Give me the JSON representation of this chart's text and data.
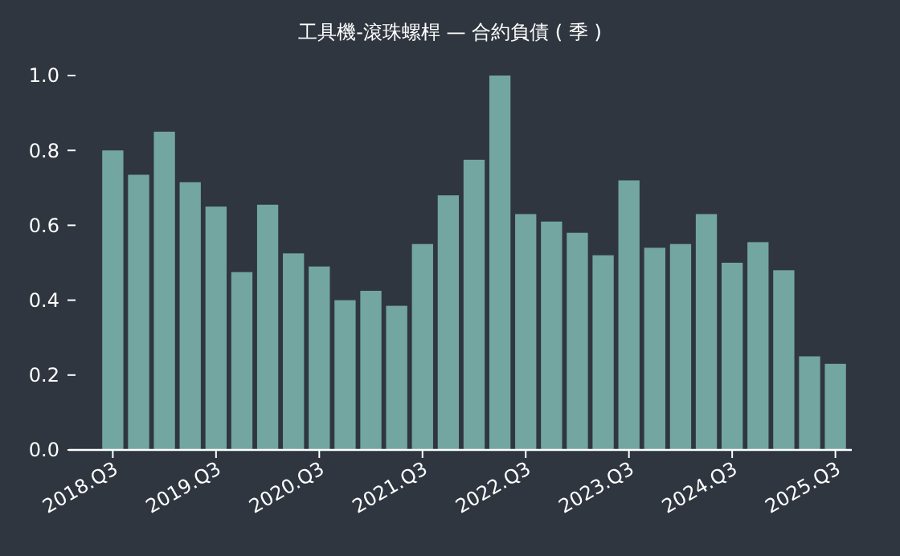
{
  "chart_data": {
    "type": "bar",
    "title": "工具機-滾珠螺桿 — 合約負債 ( 季 )",
    "categories": [
      "2018.Q3",
      null,
      null,
      null,
      "2019.Q3",
      null,
      null,
      null,
      "2020.Q3",
      null,
      null,
      null,
      "2021.Q3",
      null,
      null,
      null,
      "2022.Q3",
      null,
      null,
      null,
      "2023.Q3",
      null,
      null,
      null,
      "2024.Q3",
      null,
      null,
      null,
      "2025.Q3"
    ],
    "values": [
      0.8,
      0.735,
      0.85,
      0.715,
      0.65,
      0.475,
      0.655,
      0.525,
      0.49,
      0.4,
      0.425,
      0.385,
      0.55,
      0.68,
      0.775,
      1.0,
      0.63,
      0.61,
      0.58,
      0.52,
      0.72,
      0.54,
      0.55,
      0.63,
      0.5,
      0.555,
      0.48,
      0.25,
      0.23
    ],
    "color": "#73a6a0",
    "ylim": [
      0,
      1.0
    ],
    "yticks": [
      {
        "value": 0,
        "label": "0.0"
      },
      {
        "value": 0.2,
        "label": "0.2"
      },
      {
        "value": 0.4,
        "label": "0.4"
      },
      {
        "value": 0.6,
        "label": "0.6"
      },
      {
        "value": 0.8,
        "label": "0.8"
      },
      {
        "value": 1.0,
        "label": "1.0"
      }
    ],
    "grid": false
  }
}
